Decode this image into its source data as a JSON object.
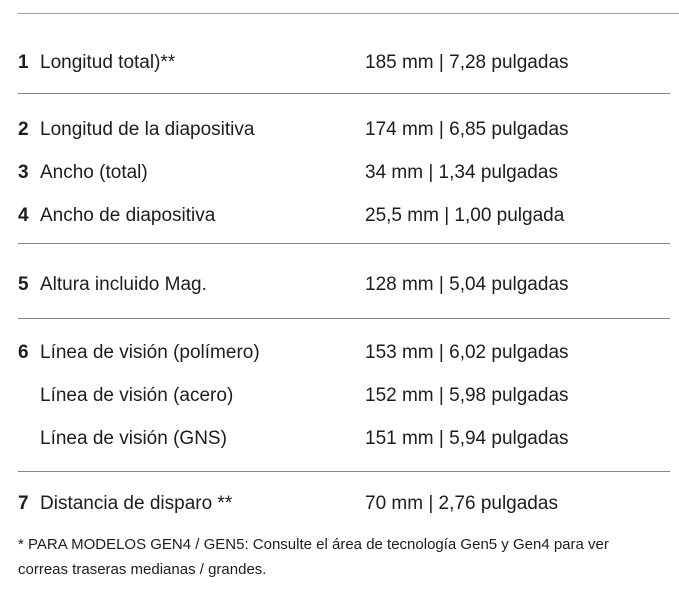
{
  "colors": {
    "background": "#ffffff",
    "text": "#1d1d1b",
    "top_divider": "#9aa1a7",
    "section_divider": "#848484"
  },
  "sections": [
    {
      "rows": [
        {
          "num": "1",
          "label": "Longitud total)**",
          "value": "185 mm | 7,28 pulgadas"
        }
      ]
    },
    {
      "rows": [
        {
          "num": "2",
          "label": "Longitud de la diapositiva",
          "value": "174 mm | 6,85 pulgadas"
        },
        {
          "num": "3",
          "label": "Ancho (total)",
          "value": "34 mm | 1,34 pulgadas"
        },
        {
          "num": "4",
          "label": "Ancho de diapositiva",
          "value": "25,5 mm | 1,00 pulgada"
        }
      ]
    },
    {
      "rows": [
        {
          "num": "5",
          "label": "Altura incluido Mag.",
          "value": "128 mm | 5,04 pulgadas"
        }
      ]
    },
    {
      "rows": [
        {
          "num": "6",
          "label": "Línea de visión (polímero)",
          "value": "153 mm | 6,02 pulgadas"
        },
        {
          "num": "",
          "label": "Línea de visión (acero)",
          "value": "152 mm | 5,98 pulgadas"
        },
        {
          "num": "",
          "label": "Línea de visión (GNS)",
          "value": "151 mm | 5,94 pulgadas"
        }
      ]
    },
    {
      "rows": [
        {
          "num": "7",
          "label": "Distancia de disparo **",
          "value": "70 mm | 2,76 pulgadas"
        }
      ]
    }
  ],
  "footnote": {
    "line1": "* PARA MODELOS GEN4 / GEN5: Consulte el área de tecnología Gen5 y Gen4 para ver",
    "line2": "correas traseras medianas / grandes."
  }
}
